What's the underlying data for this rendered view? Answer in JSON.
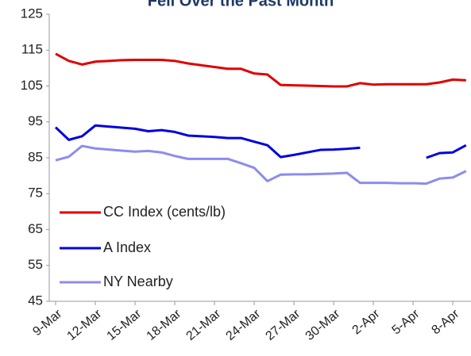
{
  "chart_data": {
    "type": "line",
    "title": "Fell Over the Past Month",
    "categories": [
      "9-Mar",
      null,
      null,
      "12-Mar",
      null,
      null,
      "15-Mar",
      null,
      null,
      "18-Mar",
      null,
      null,
      "21-Mar",
      null,
      null,
      "24-Mar",
      null,
      null,
      "27-Mar",
      null,
      null,
      "30-Mar",
      null,
      null,
      "2-Apr",
      null,
      null,
      "5-Apr",
      null,
      null,
      "8-Apr",
      null
    ],
    "series": [
      {
        "name": "CC Index (cents/lb)",
        "color": "#e00000",
        "values": [
          114,
          112,
          111,
          111.8,
          112,
          112.2,
          112.3,
          112.3,
          112.3,
          112,
          111.3,
          110.8,
          110.3,
          109.8,
          109.8,
          108.5,
          108.2,
          105.3,
          105.2,
          105.1,
          105,
          104.9,
          104.9,
          105.8,
          105.4,
          105.5,
          105.5,
          105.5,
          105.5,
          106,
          106.8,
          106.6
        ]
      },
      {
        "name": "A Index",
        "color": "#0000e0",
        "values": [
          93.5,
          90,
          91,
          94,
          93.7,
          93.4,
          93.1,
          92.4,
          92.7,
          92.2,
          91.2,
          91,
          90.8,
          90.5,
          90.5,
          89.5,
          88.5,
          85.2,
          85.8,
          86.5,
          87.2,
          87.3,
          87.5,
          87.8,
          null,
          null,
          null,
          null,
          85,
          86.3,
          86.5,
          88.5
        ]
      },
      {
        "name": "NY Nearby",
        "color": "#8c8cf0",
        "values": [
          84.3,
          85.3,
          88.3,
          87.6,
          87.3,
          87,
          86.7,
          86.9,
          86.5,
          85.5,
          84.7,
          84.7,
          84.7,
          84.7,
          83.5,
          82.2,
          78.5,
          80.3,
          80.4,
          80.4,
          80.5,
          80.6,
          80.8,
          78,
          78,
          78,
          77.9,
          77.9,
          77.8,
          79.2,
          79.5,
          81.3
        ]
      }
    ],
    "ylim": [
      45,
      125
    ],
    "yticks": [
      45,
      55,
      65,
      75,
      85,
      95,
      105,
      115,
      125
    ],
    "grid": false
  }
}
